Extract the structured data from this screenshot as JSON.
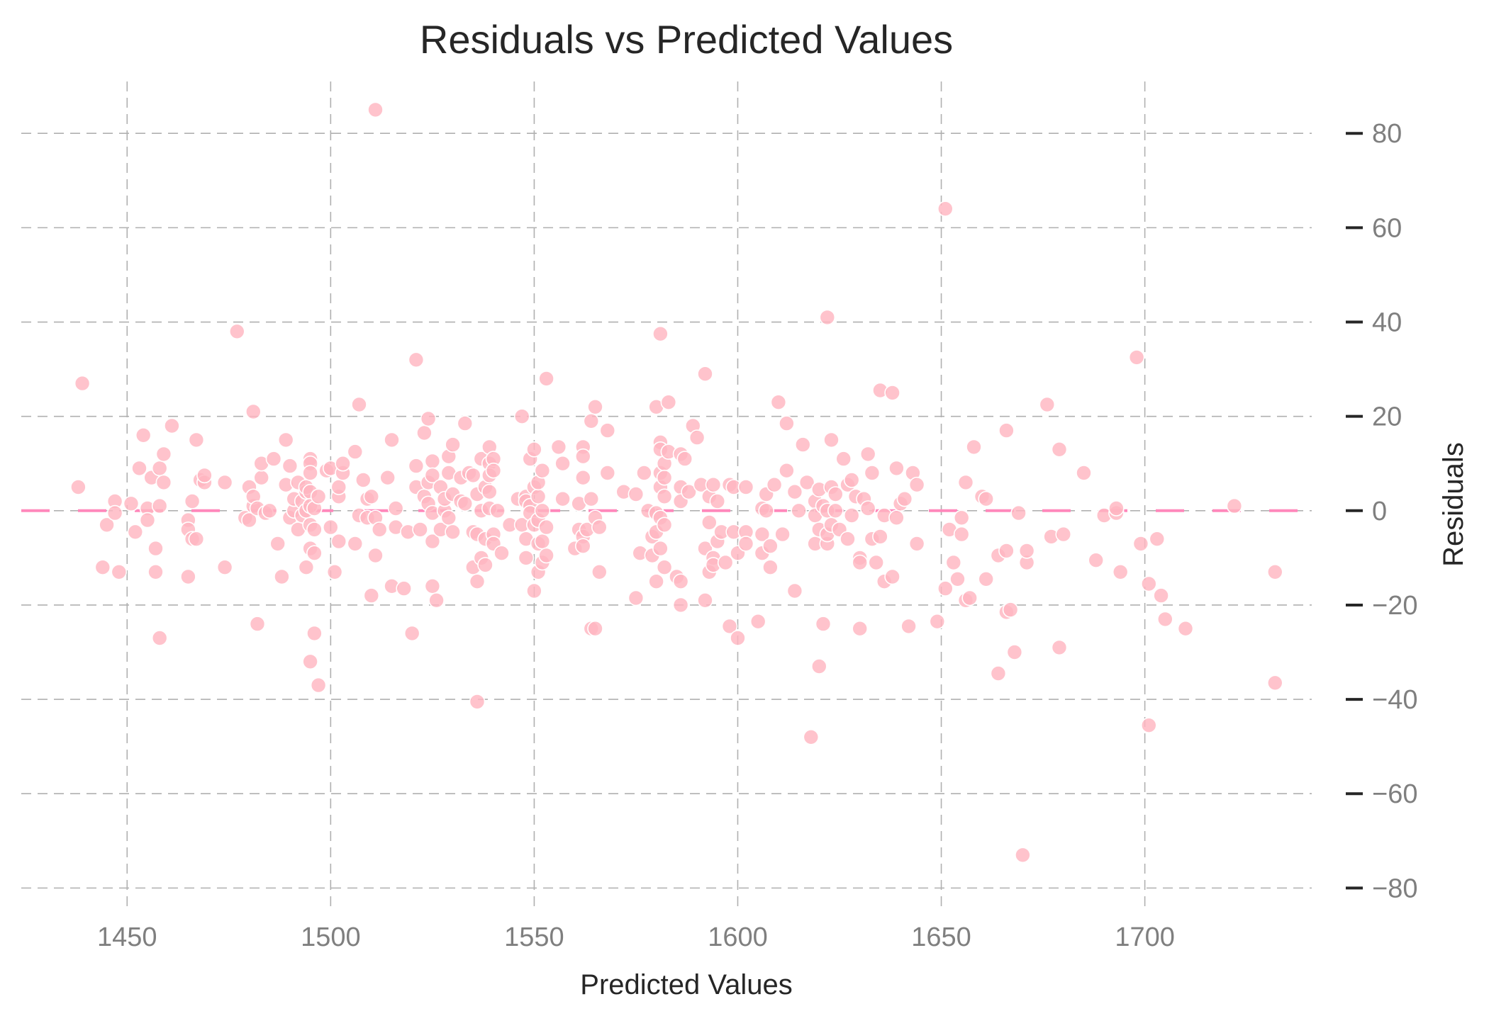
{
  "chart_data": {
    "type": "scatter",
    "title": "Residuals vs Predicted Values",
    "xlabel": "Predicted Values",
    "ylabel": "Residuals",
    "xlim": [
      1424,
      1741
    ],
    "ylim": [
      -84,
      91
    ],
    "xticks": [
      1450,
      1500,
      1550,
      1600,
      1650,
      1700
    ],
    "xtick_labels": [
      "1450",
      "1500",
      "1550",
      "1600",
      "1650",
      "1700"
    ],
    "yticks": [
      80,
      60,
      40,
      20,
      0,
      -20,
      -40,
      -60,
      -80
    ],
    "ytick_labels": [
      "80",
      "60",
      "40",
      "20",
      "0",
      "−20",
      "−40",
      "−60",
      "−80"
    ],
    "grid": true,
    "y_axis_side": "right",
    "reference_line": {
      "y": 0,
      "style": "dashed",
      "color": "#ff88bb"
    },
    "marker_color": "#ffb6c1",
    "points": [
      [
        1439,
        27
      ],
      [
        1438,
        5
      ],
      [
        1444,
        -12
      ],
      [
        1445,
        -3
      ],
      [
        1447,
        2
      ],
      [
        1447,
        -0.5
      ],
      [
        1448,
        -13
      ],
      [
        1451,
        1.5
      ],
      [
        1452,
        -4.5
      ],
      [
        1453,
        9
      ],
      [
        1454,
        16
      ],
      [
        1455,
        0.5
      ],
      [
        1455,
        -2
      ],
      [
        1456,
        7
      ],
      [
        1457,
        -13
      ],
      [
        1457,
        -8
      ],
      [
        1458,
        -27
      ],
      [
        1458,
        9
      ],
      [
        1458,
        1
      ],
      [
        1459,
        6
      ],
      [
        1459,
        12
      ],
      [
        1461,
        18
      ],
      [
        1465,
        -2
      ],
      [
        1465,
        -4
      ],
      [
        1465,
        -14
      ],
      [
        1466,
        -6
      ],
      [
        1466,
        2
      ],
      [
        1467,
        15
      ],
      [
        1467,
        -6
      ],
      [
        1468,
        6.5
      ],
      [
        1469,
        6
      ],
      [
        1469,
        7.5
      ],
      [
        1474,
        6
      ],
      [
        1474,
        -12
      ],
      [
        1477,
        38
      ],
      [
        1479,
        -1.5
      ],
      [
        1480,
        -2
      ],
      [
        1480,
        5
      ],
      [
        1481,
        21
      ],
      [
        1481,
        1
      ],
      [
        1481,
        3
      ],
      [
        1482,
        -24
      ],
      [
        1482,
        0.5
      ],
      [
        1483,
        7
      ],
      [
        1483,
        10
      ],
      [
        1484,
        -0.5
      ],
      [
        1485,
        0
      ],
      [
        1486,
        11
      ],
      [
        1487,
        -7
      ],
      [
        1488,
        -14
      ],
      [
        1489,
        15
      ],
      [
        1489,
        5.5
      ],
      [
        1490,
        9.5
      ],
      [
        1490,
        -1.5
      ],
      [
        1491,
        0
      ],
      [
        1491,
        2.5
      ],
      [
        1492,
        -4
      ],
      [
        1492,
        6
      ],
      [
        1493,
        2
      ],
      [
        1493,
        -1
      ],
      [
        1494,
        -12
      ],
      [
        1494,
        0
      ],
      [
        1494,
        4
      ],
      [
        1494,
        5
      ],
      [
        1495,
        11
      ],
      [
        1495,
        10
      ],
      [
        1495,
        8
      ],
      [
        1495,
        4
      ],
      [
        1495,
        1
      ],
      [
        1495,
        -3
      ],
      [
        1495,
        -8
      ],
      [
        1495,
        -32
      ],
      [
        1496,
        -4
      ],
      [
        1496,
        0.5
      ],
      [
        1496,
        -9
      ],
      [
        1496,
        -26
      ],
      [
        1497,
        -37
      ],
      [
        1497,
        3
      ],
      [
        1499,
        8.5
      ],
      [
        1500,
        -3.5
      ],
      [
        1500,
        9
      ],
      [
        1501,
        -13
      ],
      [
        1502,
        -6.5
      ],
      [
        1502,
        3
      ],
      [
        1502,
        5
      ],
      [
        1503,
        8
      ],
      [
        1503,
        10
      ],
      [
        1506,
        12.5
      ],
      [
        1506,
        -7
      ],
      [
        1507,
        22.5
      ],
      [
        1507,
        -1
      ],
      [
        1508,
        6.5
      ],
      [
        1509,
        -1.5
      ],
      [
        1509,
        2.5
      ],
      [
        1510,
        3
      ],
      [
        1510,
        -18
      ],
      [
        1511,
        85
      ],
      [
        1511,
        -9.5
      ],
      [
        1511,
        -1.5
      ],
      [
        1512,
        -4
      ],
      [
        1514,
        7
      ],
      [
        1515,
        15
      ],
      [
        1515,
        -16
      ],
      [
        1516,
        -3.5
      ],
      [
        1516,
        0.5
      ],
      [
        1518,
        -16.5
      ],
      [
        1519,
        -4.5
      ],
      [
        1520,
        -26
      ],
      [
        1521,
        32
      ],
      [
        1521,
        9.5
      ],
      [
        1521,
        5
      ],
      [
        1522,
        -4
      ],
      [
        1523,
        16.5
      ],
      [
        1523,
        3
      ],
      [
        1524,
        19.5
      ],
      [
        1524,
        6
      ],
      [
        1524,
        1.5
      ],
      [
        1525,
        10.5
      ],
      [
        1525,
        7.5
      ],
      [
        1525,
        -0.5
      ],
      [
        1525,
        -6.5
      ],
      [
        1525,
        -16
      ],
      [
        1526,
        -19
      ],
      [
        1527,
        5
      ],
      [
        1527,
        -4
      ],
      [
        1528,
        0
      ],
      [
        1528,
        2.5
      ],
      [
        1529,
        -1.5
      ],
      [
        1529,
        8
      ],
      [
        1529,
        11.5
      ],
      [
        1530,
        14
      ],
      [
        1530,
        3.5
      ],
      [
        1530,
        -4.5
      ],
      [
        1532,
        7
      ],
      [
        1532,
        2
      ],
      [
        1533,
        18.5
      ],
      [
        1533,
        1.5
      ],
      [
        1534,
        8
      ],
      [
        1535,
        7.5
      ],
      [
        1535,
        -4.5
      ],
      [
        1535,
        -12
      ],
      [
        1536,
        -40.5
      ],
      [
        1536,
        -15
      ],
      [
        1536,
        -5
      ],
      [
        1536,
        3.5
      ],
      [
        1537,
        11
      ],
      [
        1537,
        0
      ],
      [
        1537,
        -10
      ],
      [
        1538,
        -11.5
      ],
      [
        1538,
        -6
      ],
      [
        1538,
        5
      ],
      [
        1539,
        13.5
      ],
      [
        1539,
        10
      ],
      [
        1539,
        7.5
      ],
      [
        1539,
        4
      ],
      [
        1539,
        0.5
      ],
      [
        1540,
        -5
      ],
      [
        1540,
        -7
      ],
      [
        1540,
        11
      ],
      [
        1540,
        8.5
      ],
      [
        1541,
        0
      ],
      [
        1542,
        -9
      ],
      [
        1544,
        -3
      ],
      [
        1546,
        2.5
      ],
      [
        1547,
        20
      ],
      [
        1547,
        -3
      ],
      [
        1548,
        3
      ],
      [
        1548,
        2
      ],
      [
        1548,
        -10
      ],
      [
        1548,
        -6
      ],
      [
        1549,
        11
      ],
      [
        1549,
        1
      ],
      [
        1549,
        -0.5
      ],
      [
        1550,
        5
      ],
      [
        1550,
        -3
      ],
      [
        1550,
        -17
      ],
      [
        1550,
        13
      ],
      [
        1551,
        -13
      ],
      [
        1551,
        -7
      ],
      [
        1551,
        -2
      ],
      [
        1551,
        3
      ],
      [
        1551,
        6
      ],
      [
        1552,
        8.5
      ],
      [
        1552,
        -11
      ],
      [
        1552,
        -6.5
      ],
      [
        1552,
        0
      ],
      [
        1553,
        28
      ],
      [
        1553,
        -3.5
      ],
      [
        1553,
        -9.5
      ],
      [
        1556,
        13.5
      ],
      [
        1557,
        10
      ],
      [
        1557,
        2.5
      ],
      [
        1560,
        -8
      ],
      [
        1561,
        1.5
      ],
      [
        1561,
        -4
      ],
      [
        1562,
        13.5
      ],
      [
        1562,
        11.5
      ],
      [
        1562,
        7
      ],
      [
        1562,
        -5.5
      ],
      [
        1562,
        -7.5
      ],
      [
        1563,
        -4
      ],
      [
        1564,
        -25
      ],
      [
        1564,
        19
      ],
      [
        1564,
        2.5
      ],
      [
        1565,
        -25
      ],
      [
        1565,
        -1.5
      ],
      [
        1565,
        22
      ],
      [
        1566,
        -3.5
      ],
      [
        1566,
        -13
      ],
      [
        1568,
        17
      ],
      [
        1568,
        8
      ],
      [
        1572,
        4
      ],
      [
        1575,
        3.5
      ],
      [
        1575,
        -18.5
      ],
      [
        1576,
        -9
      ],
      [
        1577,
        8
      ],
      [
        1578,
        0
      ],
      [
        1579,
        -5.5
      ],
      [
        1579,
        -9.5
      ],
      [
        1580,
        -4.5
      ],
      [
        1580,
        -0.5
      ],
      [
        1580,
        22
      ],
      [
        1580,
        -15
      ],
      [
        1581,
        37.5
      ],
      [
        1581,
        14.5
      ],
      [
        1581,
        13
      ],
      [
        1581,
        5
      ],
      [
        1581,
        8
      ],
      [
        1581,
        -1.5
      ],
      [
        1581,
        -8
      ],
      [
        1582,
        -12
      ],
      [
        1582,
        -3
      ],
      [
        1582,
        3
      ],
      [
        1582,
        10
      ],
      [
        1582,
        7
      ],
      [
        1583,
        23
      ],
      [
        1583,
        12.5
      ],
      [
        1585,
        -14
      ],
      [
        1586,
        12
      ],
      [
        1586,
        5
      ],
      [
        1586,
        -20
      ],
      [
        1586,
        -15
      ],
      [
        1586,
        2
      ],
      [
        1587,
        11
      ],
      [
        1588,
        4
      ],
      [
        1589,
        18
      ],
      [
        1590,
        15.5
      ],
      [
        1591,
        5.5
      ],
      [
        1592,
        29
      ],
      [
        1592,
        -19
      ],
      [
        1592,
        -8
      ],
      [
        1593,
        -2.5
      ],
      [
        1593,
        3
      ],
      [
        1593,
        -13
      ],
      [
        1594,
        5.5
      ],
      [
        1594,
        -10
      ],
      [
        1594,
        -11.5
      ],
      [
        1595,
        -6.5
      ],
      [
        1595,
        2
      ],
      [
        1596,
        -4.5
      ],
      [
        1597,
        -11
      ],
      [
        1598,
        -24.5
      ],
      [
        1598,
        5.5
      ],
      [
        1599,
        -4.5
      ],
      [
        1599,
        5
      ],
      [
        1600,
        -9
      ],
      [
        1600,
        -27
      ],
      [
        1602,
        -4.5
      ],
      [
        1602,
        -7
      ],
      [
        1602,
        5
      ],
      [
        1605,
        -23.5
      ],
      [
        1606,
        0.5
      ],
      [
        1606,
        -5
      ],
      [
        1606,
        -9
      ],
      [
        1607,
        3.5
      ],
      [
        1607,
        0
      ],
      [
        1608,
        -7.5
      ],
      [
        1608,
        -12
      ],
      [
        1609,
        5.5
      ],
      [
        1610,
        23
      ],
      [
        1611,
        -5
      ],
      [
        1612,
        18.5
      ],
      [
        1612,
        8.5
      ],
      [
        1614,
        -17
      ],
      [
        1614,
        4
      ],
      [
        1615,
        0
      ],
      [
        1616,
        14
      ],
      [
        1617,
        6
      ],
      [
        1618,
        -48
      ],
      [
        1619,
        2
      ],
      [
        1619,
        -1
      ],
      [
        1619,
        -7
      ],
      [
        1620,
        4.5
      ],
      [
        1620,
        -4
      ],
      [
        1620,
        -33
      ],
      [
        1621,
        -24
      ],
      [
        1621,
        1
      ],
      [
        1622,
        41
      ],
      [
        1622,
        -7
      ],
      [
        1622,
        0
      ],
      [
        1622,
        -5
      ],
      [
        1623,
        15
      ],
      [
        1623,
        5
      ],
      [
        1623,
        -3
      ],
      [
        1624,
        3.5
      ],
      [
        1624,
        0
      ],
      [
        1625,
        -4
      ],
      [
        1626,
        11
      ],
      [
        1627,
        5.5
      ],
      [
        1627,
        -6
      ],
      [
        1628,
        -1
      ],
      [
        1628,
        6.5
      ],
      [
        1629,
        3
      ],
      [
        1630,
        -10
      ],
      [
        1630,
        -11
      ],
      [
        1630,
        -25
      ],
      [
        1631,
        2.5
      ],
      [
        1632,
        12
      ],
      [
        1632,
        0.5
      ],
      [
        1633,
        8
      ],
      [
        1633,
        -6
      ],
      [
        1634,
        -11
      ],
      [
        1635,
        25.5
      ],
      [
        1635,
        -5.5
      ],
      [
        1636,
        -15
      ],
      [
        1636,
        -1
      ],
      [
        1638,
        -14
      ],
      [
        1638,
        25
      ],
      [
        1639,
        9
      ],
      [
        1639,
        -1.5
      ],
      [
        1640,
        1.5
      ],
      [
        1641,
        2.5
      ],
      [
        1642,
        -24.5
      ],
      [
        1643,
        8
      ],
      [
        1644,
        5.5
      ],
      [
        1644,
        -7
      ],
      [
        1649,
        -23.5
      ],
      [
        1651,
        64
      ],
      [
        1651,
        -16.5
      ],
      [
        1652,
        -4
      ],
      [
        1653,
        -11
      ],
      [
        1654,
        -14.5
      ],
      [
        1655,
        -1.5
      ],
      [
        1655,
        -5
      ],
      [
        1656,
        6
      ],
      [
        1656,
        -19
      ],
      [
        1657,
        -18.5
      ],
      [
        1658,
        13.5
      ],
      [
        1660,
        3
      ],
      [
        1661,
        -14.5
      ],
      [
        1661,
        2.5
      ],
      [
        1664,
        -34.5
      ],
      [
        1664,
        -9.5
      ],
      [
        1666,
        17
      ],
      [
        1666,
        -8.5
      ],
      [
        1666,
        -21.5
      ],
      [
        1667,
        -21
      ],
      [
        1668,
        -30
      ],
      [
        1669,
        -0.5
      ],
      [
        1670,
        -73
      ],
      [
        1671,
        -11
      ],
      [
        1671,
        -8.5
      ],
      [
        1676,
        22.5
      ],
      [
        1677,
        -5.5
      ],
      [
        1679,
        -29
      ],
      [
        1679,
        13
      ],
      [
        1680,
        -5
      ],
      [
        1685,
        8
      ],
      [
        1688,
        -10.5
      ],
      [
        1690,
        -1
      ],
      [
        1693,
        -0.5
      ],
      [
        1693,
        0.5
      ],
      [
        1694,
        -13
      ],
      [
        1698,
        32.5
      ],
      [
        1699,
        -7
      ],
      [
        1701,
        -15.5
      ],
      [
        1701,
        -45.5
      ],
      [
        1703,
        -6
      ],
      [
        1704,
        -18
      ],
      [
        1705,
        -23
      ],
      [
        1710,
        -25
      ],
      [
        1722,
        1
      ],
      [
        1732,
        -13
      ],
      [
        1732,
        -36.5
      ]
    ]
  }
}
